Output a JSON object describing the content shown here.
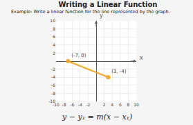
{
  "chart_data": {
    "type": "line",
    "title": "Writing a Linear Function",
    "subtitle": "Example: Write a linear function for the line represented by the graph.",
    "x_label": "x",
    "y_label": "y",
    "annotations": [
      "y − y₁ = m(x − x₁)"
    ],
    "series": [
      {
        "x": [
          -7,
          3
        ],
        "values": [
          0,
          -4
        ],
        "color": "#F5A623",
        "marker": "circle",
        "line_style": "solid",
        "value_labels": [
          "(-7, 0)",
          "(3, -4)"
        ]
      }
    ],
    "data_labels": true,
    "xlim": [
      -10,
      10
    ],
    "ylim": [
      -10,
      10
    ],
    "xticks": [
      -10,
      -8,
      -6,
      -4,
      -2,
      2,
      4,
      6,
      8,
      10
    ],
    "yticks": [
      -10,
      -8,
      -6,
      -4,
      -2,
      2,
      4,
      6,
      8,
      10
    ],
    "grid": true
  }
}
